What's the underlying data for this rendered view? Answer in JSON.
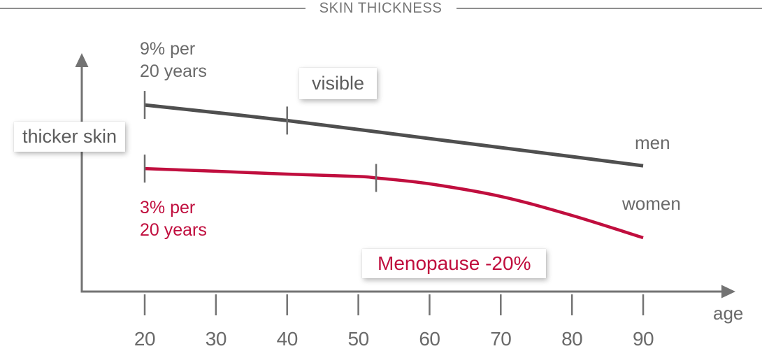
{
  "title": "SKIN THICKNESS",
  "annotations": {
    "men_rate": "9% per\n20 years",
    "women_rate": "3% per\n20 years",
    "visible": "visible",
    "thicker_skin": "thicker skin",
    "menopause": "Menopause -20%",
    "men_label": "men",
    "women_label": "women",
    "age_label": "age"
  },
  "colors": {
    "men": "#4f4f4f",
    "women": "#c00e3e",
    "axis": "#737373",
    "marker": "#6d6d6d",
    "text": "#6a6a6a",
    "title": "#757575"
  },
  "chart_data": {
    "type": "line",
    "title": "SKIN THICKNESS",
    "xlabel": "age",
    "ylabel": "thicker skin",
    "x_ticks": [
      20,
      30,
      40,
      50,
      60,
      70,
      80,
      90
    ],
    "x_range": [
      20,
      90
    ],
    "y_units": "relative skin thickness (schematic, arbitrary index)",
    "grid": false,
    "legend_position": "inline-right",
    "series": [
      {
        "name": "men",
        "color": "#4f4f4f",
        "note": "declines about 9% per 20 years, visible",
        "points": [
          {
            "age": 20,
            "thickness": 91.7
          },
          {
            "age": 40,
            "thickness": 84.0
          },
          {
            "age": 60,
            "thickness": 75.1
          },
          {
            "age": 80,
            "thickness": 66.2
          },
          {
            "age": 90,
            "thickness": 61.7
          }
        ]
      },
      {
        "name": "women",
        "color": "#c00e3e",
        "note": "declines about 3% per 20 years, then Menopause -20%",
        "points": [
          {
            "age": 20,
            "thickness": 60.3
          },
          {
            "age": 30,
            "thickness": 59.0
          },
          {
            "age": 40,
            "thickness": 57.6
          },
          {
            "age": 50,
            "thickness": 56.4
          },
          {
            "age": 52.5,
            "thickness": 55.7
          },
          {
            "age": 60,
            "thickness": 52.8
          },
          {
            "age": 70,
            "thickness": 46.6
          },
          {
            "age": 80,
            "thickness": 37.2
          },
          {
            "age": 90,
            "thickness": 26.2
          }
        ]
      }
    ],
    "markers": [
      {
        "series": "men",
        "age": 20
      },
      {
        "series": "men",
        "age": 40
      },
      {
        "series": "women",
        "age": 20
      },
      {
        "series": "women",
        "age": 52.5
      }
    ]
  }
}
